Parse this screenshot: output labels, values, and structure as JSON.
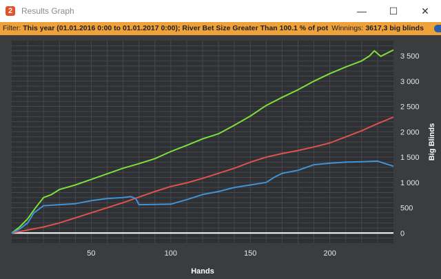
{
  "window": {
    "title": "Results Graph",
    "icon_glyph": "2",
    "buttons": [
      {
        "name": "minimize-icon",
        "glyph": "—"
      },
      {
        "name": "maximize-icon",
        "glyph": "☐"
      },
      {
        "name": "close-icon",
        "glyph": "✕"
      }
    ]
  },
  "filter": {
    "label": "Filter:",
    "text": "This year (01.01.2016 0:00 to 01.01.2017 0:00); River Bet Size Greater Than 100.1 % of pot",
    "winnings_label": "Winnings:",
    "winnings_value": "3617,3 big blinds"
  },
  "colors": {
    "background": "#3a3c40",
    "plot_background": "#2e3033",
    "filter_bar": "#f0a23a",
    "grid": "#46494d",
    "zero_line": "#ffffff",
    "series_green": "#7de03c",
    "series_red": "#e0524e",
    "series_blue": "#3f94d6"
  },
  "chart_data": {
    "type": "line",
    "xlabel": "Hands",
    "ylabel": "Big Blinds",
    "xlim": [
      0,
      240
    ],
    "ylim": [
      -200,
      3800
    ],
    "xticks": [
      50,
      100,
      150,
      200
    ],
    "yticks": [
      0,
      500,
      1000,
      1500,
      2000,
      2500,
      3000,
      3500
    ],
    "ytick_labels": [
      "0",
      "500",
      "1 000",
      "1 500",
      "2 000",
      "2 500",
      "3 000",
      "3 500"
    ],
    "grid": true,
    "legend": "none",
    "series": [
      {
        "color": "#7de03c",
        "x": [
          0,
          5,
          10,
          15,
          20,
          25,
          30,
          40,
          50,
          60,
          70,
          80,
          90,
          100,
          110,
          120,
          130,
          140,
          150,
          160,
          170,
          180,
          190,
          200,
          210,
          220,
          225,
          228,
          232,
          240
        ],
        "y": [
          0,
          120,
          280,
          500,
          700,
          760,
          860,
          950,
          1060,
          1170,
          1280,
          1370,
          1470,
          1610,
          1730,
          1860,
          1960,
          2130,
          2310,
          2520,
          2680,
          2830,
          3000,
          3150,
          3280,
          3400,
          3500,
          3600,
          3490,
          3617
        ]
      },
      {
        "color": "#e0524e",
        "x": [
          0,
          10,
          20,
          30,
          40,
          50,
          60,
          70,
          80,
          90,
          100,
          110,
          120,
          130,
          140,
          150,
          160,
          170,
          180,
          190,
          200,
          210,
          220,
          230,
          240
        ],
        "y": [
          0,
          60,
          120,
          200,
          300,
          400,
          500,
          600,
          710,
          820,
          920,
          990,
          1080,
          1180,
          1280,
          1400,
          1500,
          1570,
          1630,
          1700,
          1780,
          1900,
          2020,
          2160,
          2290
        ]
      },
      {
        "color": "#3f94d6",
        "x": [
          0,
          5,
          10,
          14,
          20,
          30,
          40,
          50,
          60,
          70,
          75,
          78,
          80,
          100,
          110,
          120,
          130,
          140,
          150,
          160,
          165,
          170,
          180,
          190,
          200,
          210,
          220,
          230,
          240
        ],
        "y": [
          0,
          80,
          200,
          400,
          540,
          560,
          580,
          640,
          680,
          700,
          720,
          680,
          560,
          570,
          660,
          760,
          820,
          900,
          950,
          1000,
          1100,
          1180,
          1240,
          1350,
          1380,
          1400,
          1410,
          1420,
          1320
        ]
      }
    ]
  }
}
